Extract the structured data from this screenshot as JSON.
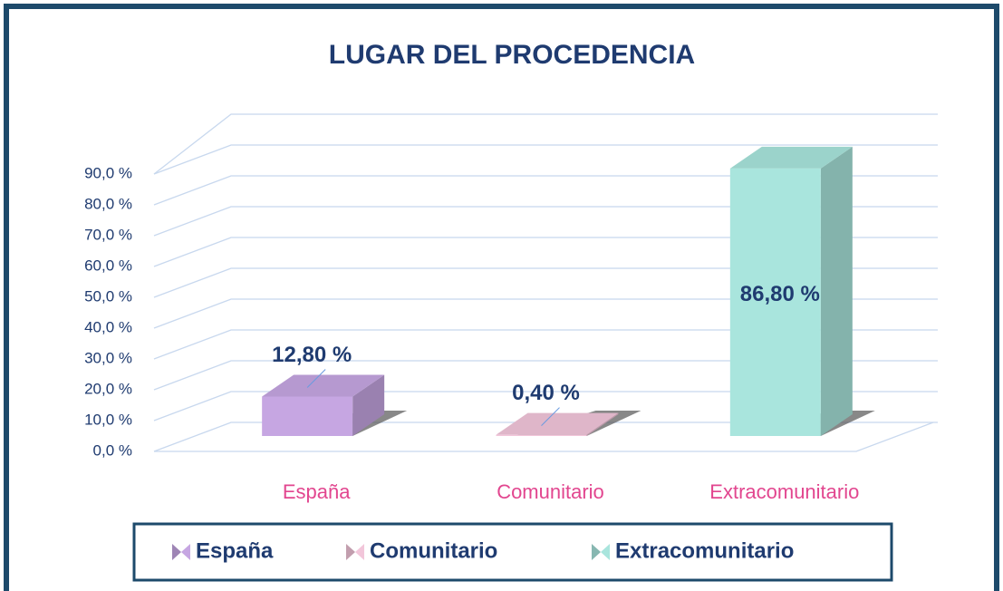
{
  "chart_data": {
    "type": "bar3d",
    "title": "LUGAR DEL PROCEDENCIA",
    "categories": [
      "España",
      "Comunitario",
      "Extracomunitario"
    ],
    "series": [
      {
        "name": "España",
        "color": "#c6a6e2",
        "values": [
          12.8,
          null,
          null
        ],
        "value_labels": [
          "12,80 %",
          null,
          null
        ]
      },
      {
        "name": "Comunitario",
        "color": "#f2c6da",
        "values": [
          null,
          0.4,
          null
        ],
        "value_labels": [
          null,
          "0,40 %",
          null
        ]
      },
      {
        "name": "Extracomunitario",
        "color": "#a9e5dd",
        "values": [
          null,
          null,
          86.8
        ],
        "value_labels": [
          null,
          null,
          "86,80 %"
        ]
      }
    ],
    "ylim": [
      0,
      100
    ],
    "yticks": [
      {
        "value": 0,
        "label": "0,0 %"
      },
      {
        "value": 10,
        "label": "10,0 %"
      },
      {
        "value": 20,
        "label": "20,0 %"
      },
      {
        "value": 30,
        "label": "30,0 %"
      },
      {
        "value": 40,
        "label": "40,0 %"
      },
      {
        "value": 50,
        "label": "50,0 %"
      },
      {
        "value": 60,
        "label": "60,0 %"
      },
      {
        "value": 70,
        "label": "70,0 %"
      },
      {
        "value": 80,
        "label": "80,0 %"
      },
      {
        "value": 90,
        "label": "90,0 %"
      }
    ],
    "grid": true,
    "legend": "bottom"
  }
}
